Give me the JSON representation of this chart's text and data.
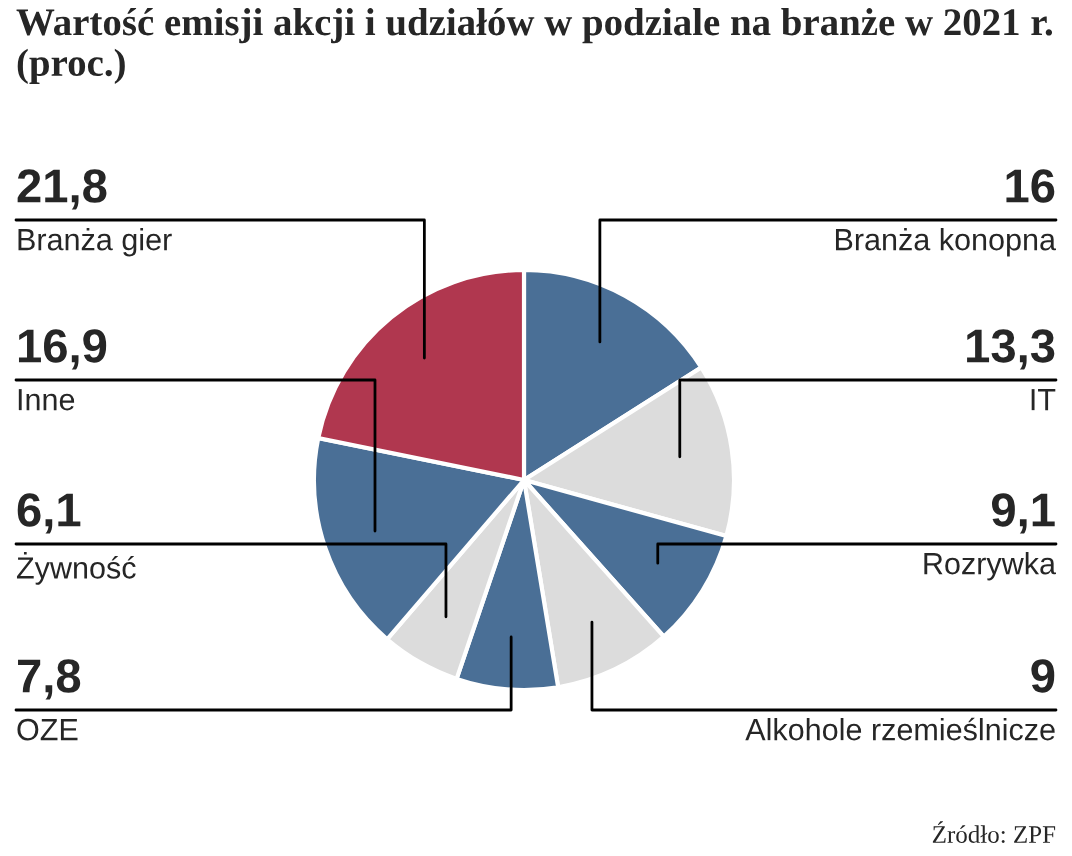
{
  "chart_data": {
    "type": "pie",
    "title": "Wartość emisji akcji i udziałów w podziale na branże w 2021 r. (proc.)",
    "categories": [
      "Branża konopna",
      "IT",
      "Rozrywka",
      "Alkohole rzemieślnicze",
      "OZE",
      "Żywność",
      "Inne",
      "Branża gier"
    ],
    "values": [
      16,
      13.3,
      9.1,
      9,
      7.8,
      6.1,
      16.9,
      21.8
    ],
    "colors": [
      "#4a6f96",
      "#dcdcdc",
      "#4a6f96",
      "#dcdcdc",
      "#4a6f96",
      "#dcdcdc",
      "#4a6f96",
      "#b0374f"
    ],
    "value_labels": [
      "16",
      "13,3",
      "9,1",
      "9",
      "7,8",
      "6,1",
      "16,9",
      "21,8"
    ],
    "annotations": [
      "Źródło: ZPF"
    ]
  }
}
